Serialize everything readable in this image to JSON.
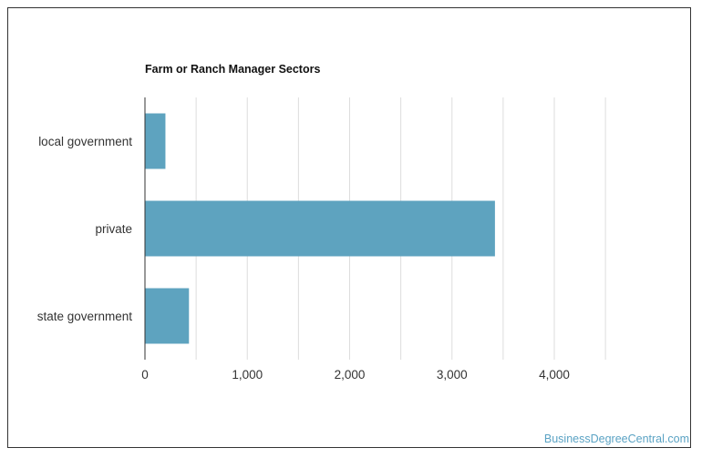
{
  "chart_data": {
    "type": "bar",
    "orientation": "horizontal",
    "title": "Farm or Ranch Manager Sectors",
    "categories": [
      "local government",
      "private",
      "state government"
    ],
    "values": [
      200,
      3420,
      430
    ],
    "xlim": [
      0,
      4500
    ],
    "xticks": [
      0,
      1000,
      2000,
      3000,
      4000
    ],
    "xtick_labels": [
      "0",
      "1,000",
      "2,000",
      "3,000",
      "4,000"
    ],
    "xlabel": "",
    "ylabel": "",
    "grid": true,
    "legend": "none",
    "bar_color": "#5ea3bf"
  },
  "footer": {
    "watermark": "BusinessDegreeCentral.com"
  }
}
